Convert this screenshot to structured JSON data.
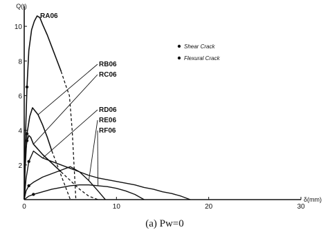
{
  "chart_data": {
    "type": "line",
    "title": "",
    "xlabel": "δ(mm)",
    "ylabel": "Q(t)",
    "xlim": [
      0,
      30
    ],
    "ylim": [
      0,
      11
    ],
    "x_ticks": [
      "0",
      "10",
      "20",
      "30"
    ],
    "y_ticks": [
      "2",
      "4",
      "6",
      "8",
      "10"
    ],
    "grid": false,
    "legend": [
      {
        "marker": "filled-circle",
        "label": "Shear Crack"
      },
      {
        "marker": "filled-circle",
        "label": "Flexural Crack"
      }
    ],
    "caption": "(a)  Pw=0",
    "series": [
      {
        "name": "RA06",
        "style": "solid-then-dashed",
        "x": [
          0,
          0.1,
          0.3,
          0.5,
          0.8,
          1.1,
          1.4,
          1.7,
          2.0,
          2.5,
          3.0,
          3.5,
          4.0,
          4.5,
          4.9,
          5.2,
          5.6
        ],
        "y": [
          0,
          3.0,
          6.5,
          8.6,
          9.8,
          10.3,
          10.6,
          10.5,
          10.1,
          9.5,
          8.8,
          8.1,
          7.4,
          6.6,
          6.0,
          4.0,
          0
        ]
      },
      {
        "name": "RB06",
        "style": "solid-then-dashed",
        "x": [
          0,
          0.1,
          0.3,
          0.6,
          0.9,
          1.2,
          1.5,
          2.0,
          2.5,
          3.0,
          3.5,
          4.0,
          4.5,
          5.0
        ],
        "y": [
          0,
          1.8,
          3.8,
          4.8,
          5.3,
          5.1,
          4.9,
          4.3,
          3.6,
          2.8,
          2.1,
          1.4,
          0.7,
          0
        ]
      },
      {
        "name": "RC06",
        "style": "solid-then-dashed",
        "x": [
          0,
          0.1,
          0.3,
          0.5,
          0.7,
          1.0,
          1.5,
          2.0,
          3.0,
          4.0,
          5.0,
          6.0,
          7.0,
          8.0
        ],
        "y": [
          0,
          2.5,
          3.4,
          3.7,
          3.6,
          3.2,
          2.9,
          2.6,
          2.1,
          1.6,
          1.1,
          0.6,
          0.2,
          0
        ]
      },
      {
        "name": "RD06",
        "style": "solid",
        "x": [
          0,
          0.2,
          0.5,
          1.0,
          1.5,
          2.0,
          3.0,
          4.0,
          5.0,
          6.0,
          7.0,
          8.0,
          9.0,
          10.0,
          11.0,
          12.0,
          13.0,
          14.0,
          15.0,
          16.0,
          17.0,
          18.0
        ],
        "y": [
          0,
          1.2,
          2.2,
          2.8,
          2.6,
          2.4,
          2.2,
          2.0,
          1.8,
          1.6,
          1.4,
          1.25,
          1.15,
          1.05,
          0.95,
          0.85,
          0.7,
          0.6,
          0.45,
          0.35,
          0.2,
          0
        ]
      },
      {
        "name": "RE06",
        "style": "solid",
        "x": [
          0,
          0.2,
          0.5,
          1.0,
          1.5,
          2.0,
          3.0,
          4.0,
          5.0,
          6.0,
          7.0,
          8.0,
          8.8
        ],
        "y": [
          0,
          0.5,
          0.8,
          1.0,
          1.15,
          1.3,
          1.5,
          1.7,
          1.9,
          1.6,
          1.1,
          0.5,
          0
        ]
      },
      {
        "name": "RF06",
        "style": "solid",
        "x": [
          0,
          0.5,
          1.0,
          2.0,
          3.0,
          4.0,
          5.0,
          6.0,
          7.0,
          8.0,
          9.0,
          10.0,
          11.0,
          12.0,
          13.0
        ],
        "y": [
          0,
          0.2,
          0.3,
          0.45,
          0.6,
          0.7,
          0.8,
          0.85,
          0.85,
          0.8,
          0.75,
          0.65,
          0.5,
          0.3,
          0
        ]
      }
    ]
  }
}
